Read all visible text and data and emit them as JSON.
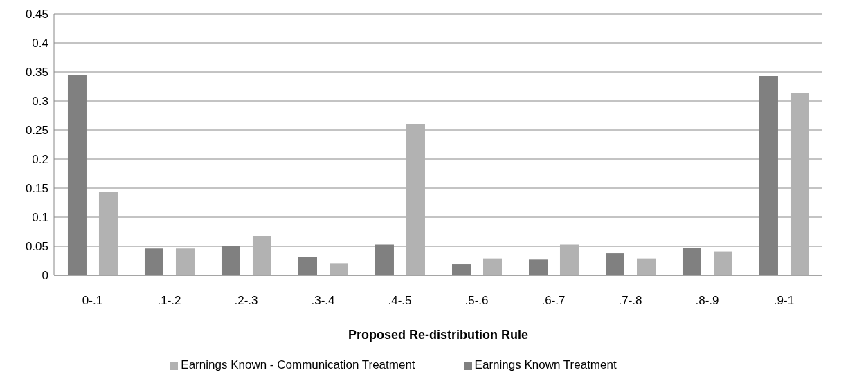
{
  "chart_data": {
    "type": "bar",
    "xlabel": "Proposed Re-distribution Rule",
    "categories": [
      "0-.1",
      ".1-.2",
      ".2-.3",
      ".3-.4",
      ".4-.5",
      ".5-.6",
      ".6-.7",
      ".7-.8",
      ".8-.9",
      ".9-1"
    ],
    "series": [
      {
        "name": "Earnings Known Treatment",
        "color": "#808080",
        "values": [
          0.345,
          0.046,
          0.05,
          0.031,
          0.053,
          0.019,
          0.027,
          0.038,
          0.047,
          0.343
        ]
      },
      {
        "name": "Earnings Known - Communication Treatment",
        "color": "#b2b2b2",
        "values": [
          0.143,
          0.046,
          0.068,
          0.021,
          0.26,
          0.029,
          0.053,
          0.029,
          0.041,
          0.313
        ]
      }
    ],
    "ylim": [
      0,
      0.45
    ],
    "yticks": [
      0,
      0.05,
      0.1,
      0.15,
      0.2,
      0.25,
      0.3,
      0.35,
      0.4,
      0.45
    ],
    "grid": "y",
    "legend": "bottom"
  }
}
